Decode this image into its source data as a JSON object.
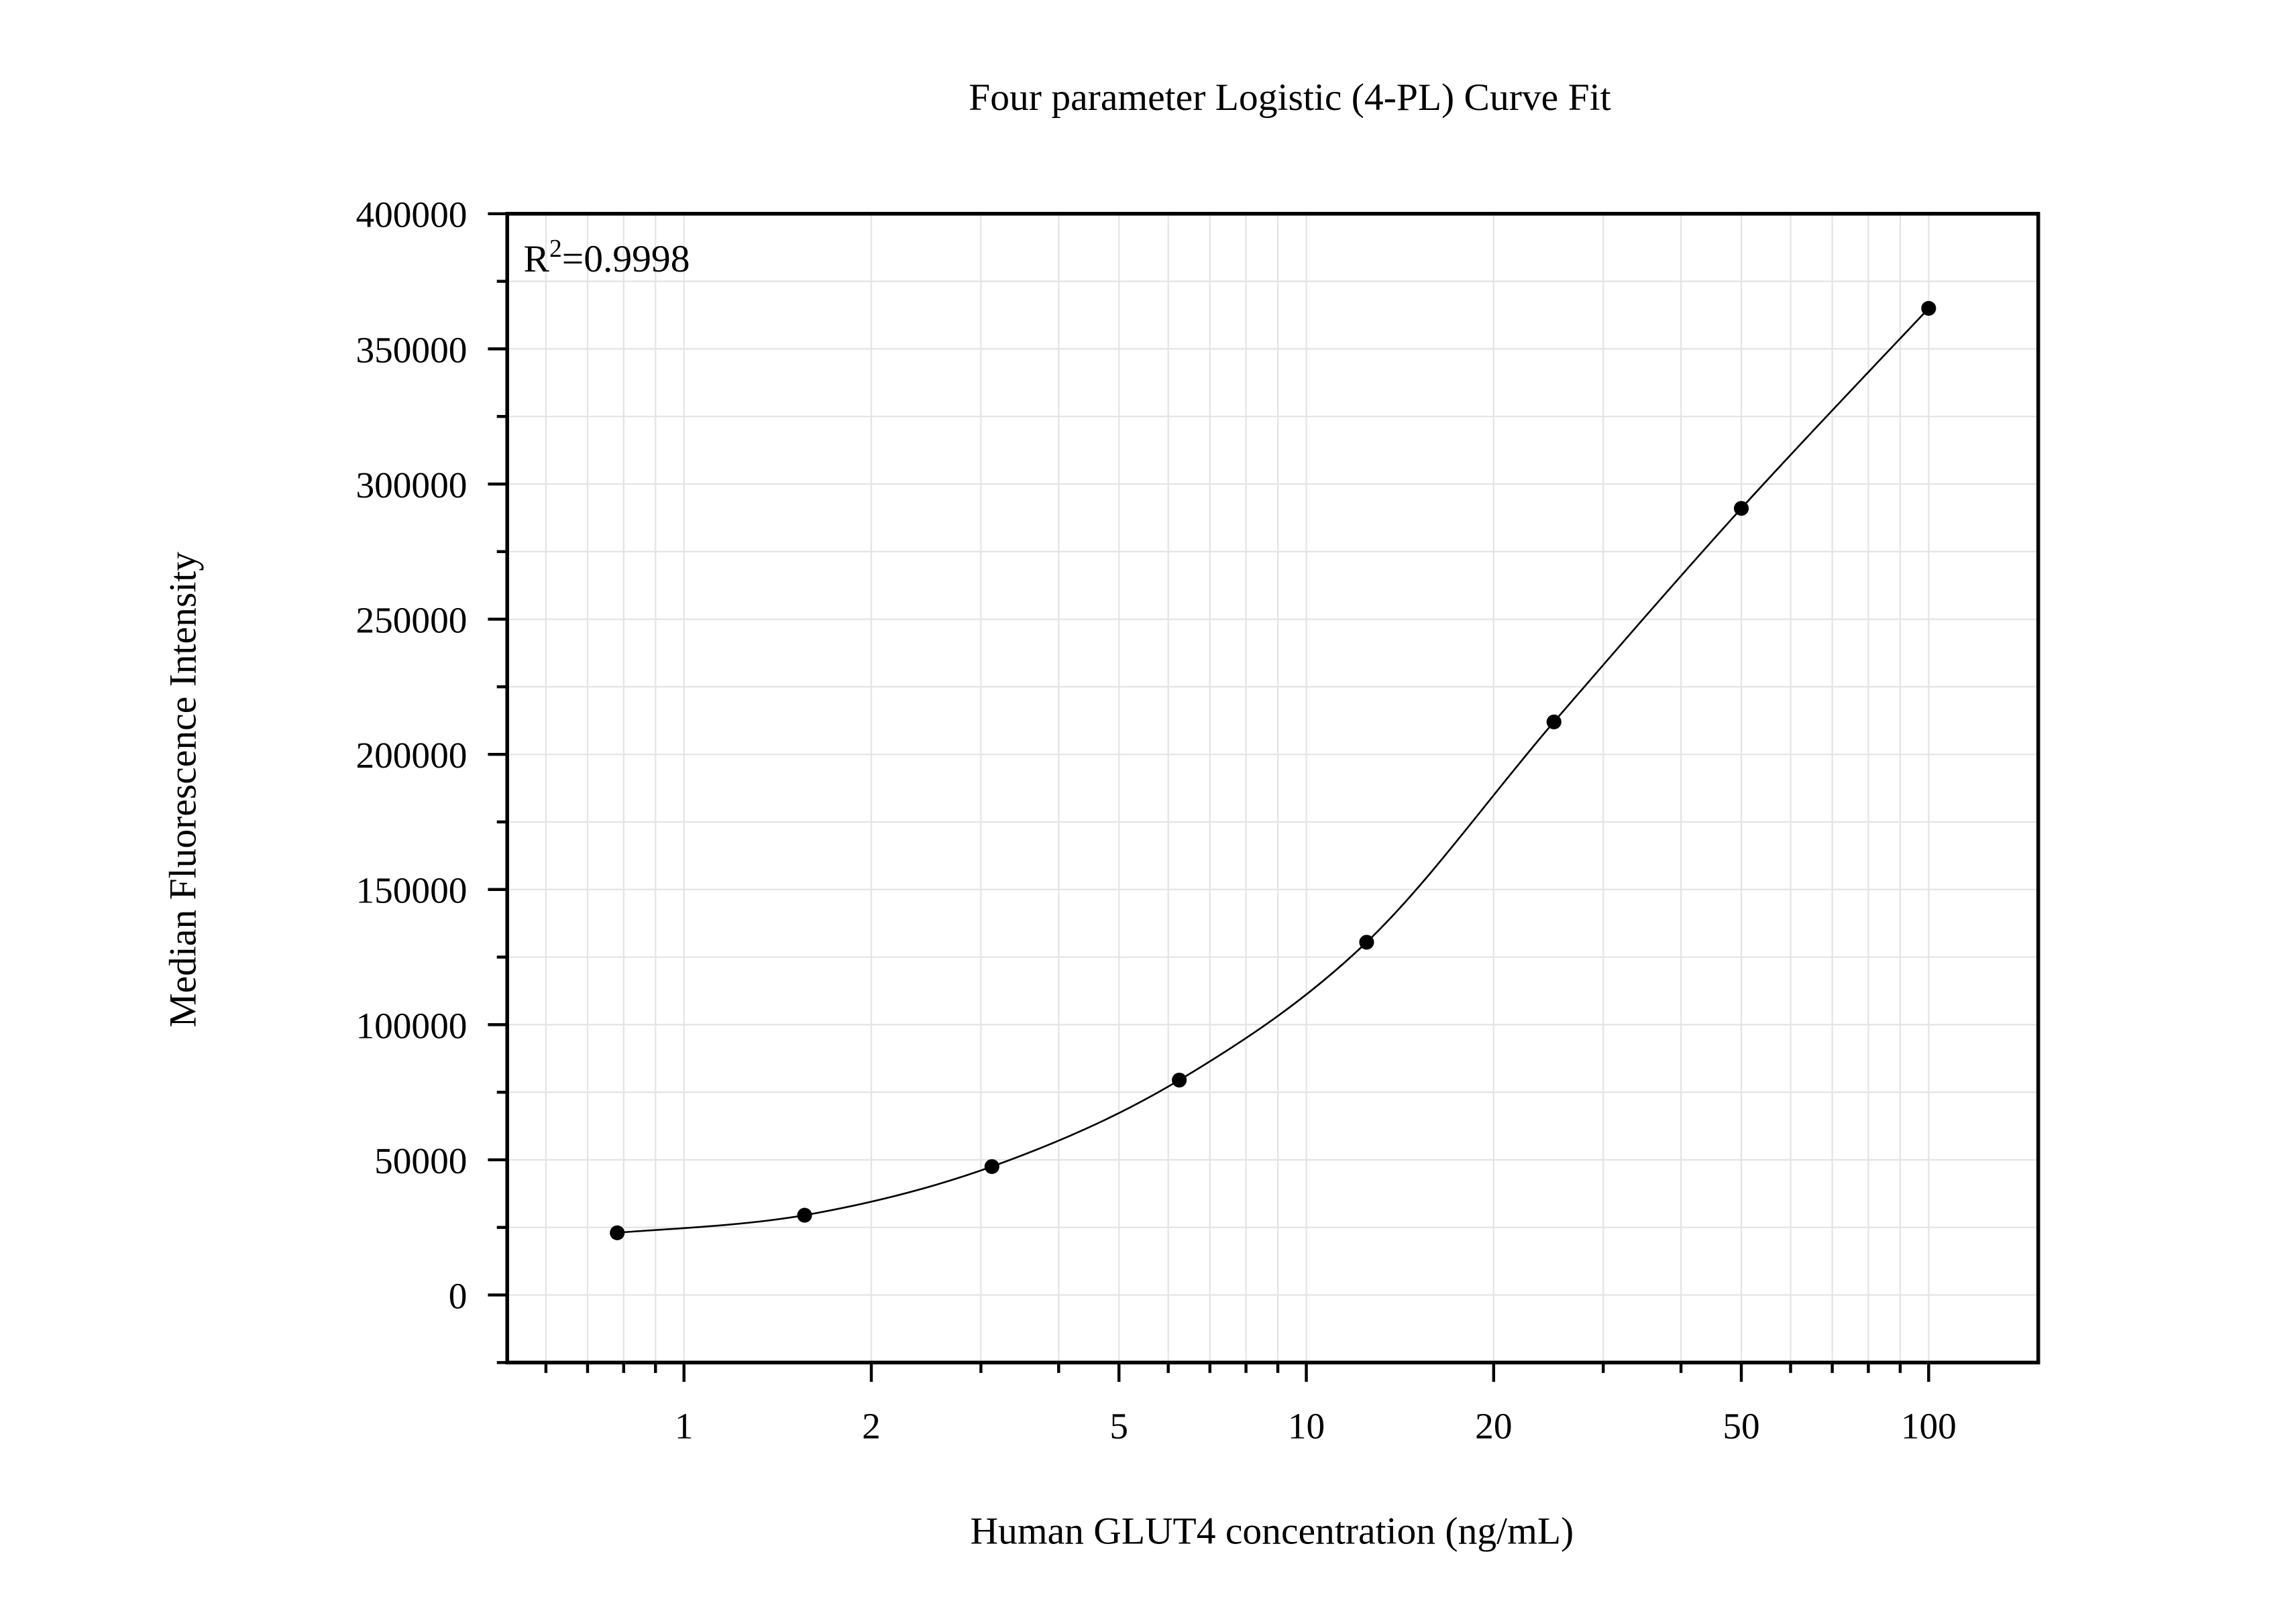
{
  "chart_data": {
    "type": "scatter",
    "title": "Four parameter Logistic (4-PL) Curve Fit",
    "x_label": "Human GLUT4 concentration (ng/mL)",
    "y_label": "Median Fluorescence Intensity",
    "annotation": [
      "R",
      "2",
      "=0.9998"
    ],
    "x": [
      0.78125,
      1.5625,
      3.125,
      6.25,
      12.5,
      25,
      50,
      100
    ],
    "values": [
      23000,
      29500,
      47500,
      79500,
      130500,
      212000,
      291000,
      365000
    ],
    "color": "#000000",
    "fit_curve": true,
    "xlog": true,
    "xlim": [
      0.52,
      150
    ],
    "ylim": [
      -25000,
      400000
    ],
    "xticks": [
      1,
      2,
      5,
      10,
      20,
      50,
      100
    ],
    "xminor_ticks": [
      0.6,
      0.7,
      0.8,
      0.9,
      3,
      4,
      6,
      7,
      8,
      9,
      30,
      40,
      60,
      70,
      80,
      90
    ],
    "yticks": [
      0,
      50000,
      100000,
      150000,
      200000,
      250000,
      300000,
      350000,
      400000
    ],
    "yminor_ticks": [
      -25000,
      25000,
      75000,
      125000,
      175000,
      225000,
      275000,
      325000,
      375000
    ],
    "grid": true
  }
}
